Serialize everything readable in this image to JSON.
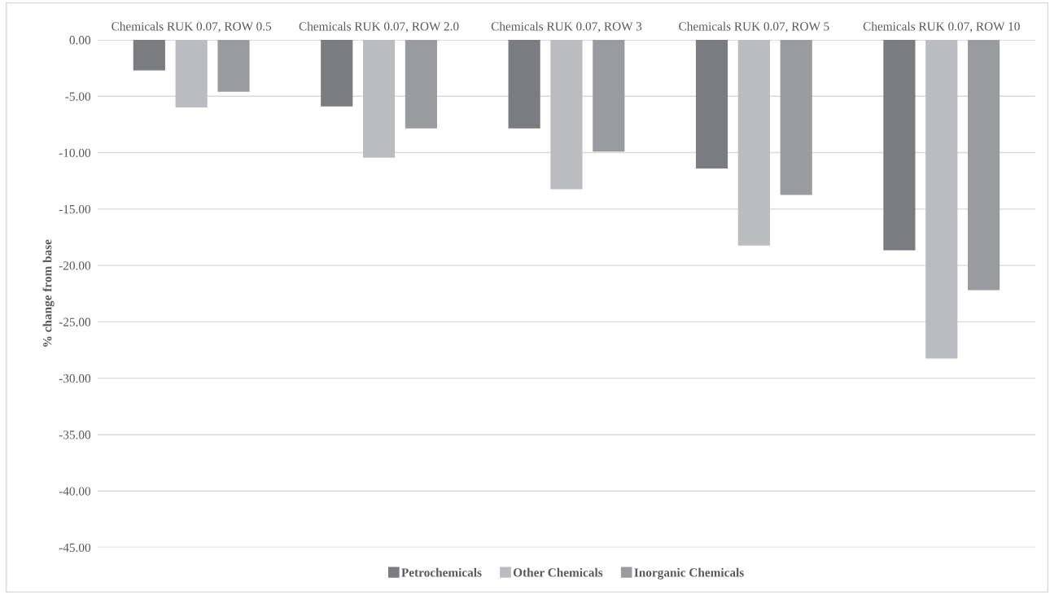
{
  "chart_data": {
    "type": "bar",
    "ylabel": "% change from base",
    "categories": [
      "Chemicals RUK 0.07, ROW 0.5",
      "Chemicals RUK 0.07, ROW 2.0",
      "Chemicals RUK 0.07, ROW 3",
      "Chemicals RUK 0.07, ROW 5",
      "Chemicals RUK 0.07, ROW 10"
    ],
    "series": [
      {
        "name": "Petrochemicals",
        "color": "#7b7c80",
        "values": [
          -2.7,
          -5.9,
          -7.85,
          -11.4,
          -18.65
        ]
      },
      {
        "name": "Other Chemicals",
        "color": "#bbbcc0",
        "values": [
          -6.0,
          -10.45,
          -13.25,
          -18.25,
          -28.25
        ]
      },
      {
        "name": "Inorganic Chemicals",
        "color": "#9a9b9f",
        "values": [
          -4.6,
          -7.85,
          -9.9,
          -13.75,
          -22.2
        ]
      }
    ],
    "ylim": [
      -45,
      0
    ],
    "yticks": [
      {
        "value": 0,
        "label": "0.00"
      },
      {
        "value": -5,
        "label": "-5.00"
      },
      {
        "value": -10,
        "label": "-10.00"
      },
      {
        "value": -15,
        "label": "-15.00"
      },
      {
        "value": -20,
        "label": "-20.00"
      },
      {
        "value": -25,
        "label": "-25.00"
      },
      {
        "value": -30,
        "label": "-30.00"
      },
      {
        "value": -35,
        "label": "-35.00"
      },
      {
        "value": -40,
        "label": "-40.00"
      },
      {
        "value": -45,
        "label": "-45.00"
      }
    ],
    "grid": "y",
    "legend": "bottom"
  }
}
